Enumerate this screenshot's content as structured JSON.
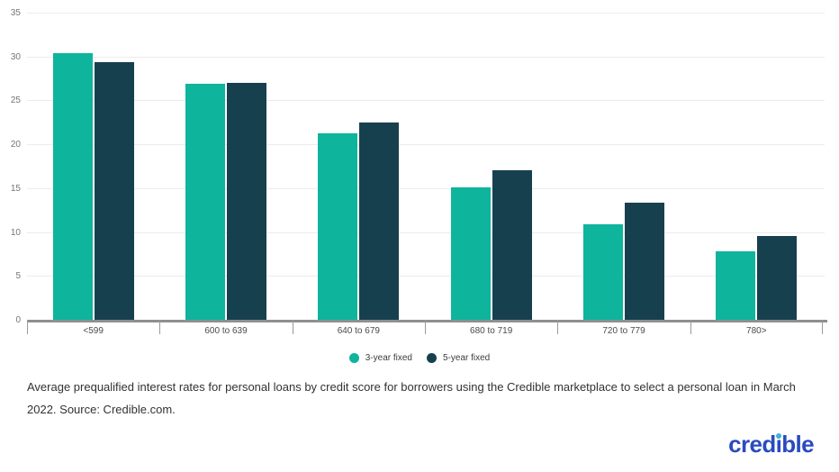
{
  "chart_data": {
    "type": "bar",
    "title": "",
    "categories": [
      "<599",
      "600 to 639",
      "640 to 679",
      "680 to 719",
      "720 to 779",
      "780>"
    ],
    "series": [
      {
        "name": "3-year fixed",
        "color": "#0eb49c",
        "values": [
          30.5,
          27.0,
          21.4,
          15.2,
          11.0,
          7.9
        ]
      },
      {
        "name": "5-year fixed",
        "color": "#17404f",
        "values": [
          29.5,
          27.1,
          22.6,
          17.1,
          13.4,
          9.7
        ]
      }
    ],
    "xlabel": "",
    "ylabel": "",
    "ylim": [
      0,
      35
    ],
    "ytick_step": 5,
    "grid": true,
    "legend_position": "bottom"
  },
  "legend": {
    "items": [
      {
        "label": "3-year fixed",
        "color": "#0eb49c"
      },
      {
        "label": "5-year fixed",
        "color": "#17404f"
      }
    ]
  },
  "caption": {
    "lines": [
      "Average prequalified interest rates for personal loans by credit score for borrowers using the Credible marketplace to select a personal loan in March",
      "2022. Source: Credible.com."
    ]
  },
  "branding": {
    "logo_text": "credible",
    "logo_color": "#2a4bc0",
    "logo_dot_color": "#43b0dd"
  },
  "colors": {
    "grid_line": "#ececec",
    "axis_line": "#8f8f8f",
    "tick_label": "#757575",
    "category_label": "#4a4a4a",
    "legend_label": "#3c3c3c",
    "caption_text": "#323232",
    "background": "#ffffff"
  }
}
